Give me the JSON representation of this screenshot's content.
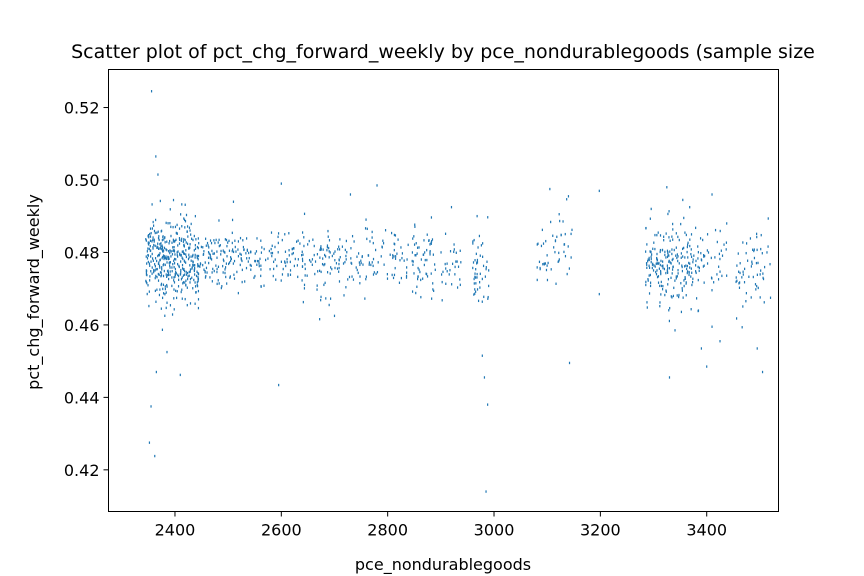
{
  "chart_data": {
    "type": "scatter",
    "title": "Scatter plot of pct_chg_forward_weekly by pce_nondurablegoods (sample size",
    "xlabel": "pce_nondurablegoods",
    "ylabel": "pct_chg_forward_weekly",
    "xlim": [
      2275,
      3535
    ],
    "ylim": [
      0.4085,
      0.5305
    ],
    "xticks": [
      "2400",
      "2600",
      "2800",
      "3000",
      "3200",
      "3400"
    ],
    "yticks": [
      "0.42",
      "0.44",
      "0.46",
      "0.48",
      "0.50",
      "0.52"
    ],
    "grid": false,
    "marker_color": "#1f77b4",
    "clusters": [
      {
        "x_range": [
          2345,
          2445
        ],
        "y_center": 0.478,
        "y_spread": 0.006,
        "count": 420
      },
      {
        "x_range": [
          2445,
          2540
        ],
        "y_center": 0.4785,
        "y_spread": 0.004,
        "count": 130
      },
      {
        "x_range": [
          2540,
          2640
        ],
        "y_center": 0.478,
        "y_spread": 0.004,
        "count": 90
      },
      {
        "x_range": [
          2640,
          2760
        ],
        "y_center": 0.478,
        "y_spread": 0.005,
        "count": 120
      },
      {
        "x_range": [
          2760,
          2840
        ],
        "y_center": 0.478,
        "y_spread": 0.004,
        "count": 60
      },
      {
        "x_range": [
          2845,
          2890
        ],
        "y_center": 0.477,
        "y_spread": 0.005,
        "count": 60
      },
      {
        "x_range": [
          2900,
          2940
        ],
        "y_center": 0.4775,
        "y_spread": 0.004,
        "count": 30
      },
      {
        "x_range": [
          2960,
          2990
        ],
        "y_center": 0.4765,
        "y_spread": 0.006,
        "count": 50
      },
      {
        "x_range": [
          3080,
          3150
        ],
        "y_center": 0.4805,
        "y_spread": 0.005,
        "count": 50
      },
      {
        "x_range": [
          3285,
          3385
        ],
        "y_center": 0.4765,
        "y_spread": 0.0055,
        "count": 230
      },
      {
        "x_range": [
          3385,
          3440
        ],
        "y_center": 0.4775,
        "y_spread": 0.005,
        "count": 40
      },
      {
        "x_range": [
          3455,
          3520
        ],
        "y_center": 0.4755,
        "y_spread": 0.006,
        "count": 60
      }
    ],
    "points": [
      [
        2356,
        0.5245
      ],
      [
        2364,
        0.5065
      ],
      [
        2368,
        0.5015
      ],
      [
        2355,
        0.4375
      ],
      [
        2352,
        0.4275
      ],
      [
        2362,
        0.4238
      ],
      [
        2365,
        0.447
      ],
      [
        2385,
        0.4525
      ],
      [
        2410,
        0.4462
      ],
      [
        2510,
        0.494
      ],
      [
        2595,
        0.4434
      ],
      [
        2600,
        0.499
      ],
      [
        2780,
        0.4985
      ],
      [
        2730,
        0.496
      ],
      [
        2985,
        0.414
      ],
      [
        2988,
        0.438
      ],
      [
        2982,
        0.4455
      ],
      [
        2978,
        0.4515
      ],
      [
        3105,
        0.4975
      ],
      [
        3140,
        0.4955
      ],
      [
        3198,
        0.497
      ],
      [
        3198,
        0.4685
      ],
      [
        3142,
        0.4495
      ],
      [
        3325,
        0.498
      ],
      [
        3330,
        0.4455
      ],
      [
        3390,
        0.4535
      ],
      [
        3400,
        0.4485
      ],
      [
        3410,
        0.496
      ],
      [
        3425,
        0.4555
      ],
      [
        3495,
        0.4535
      ],
      [
        3505,
        0.447
      ],
      [
        3410,
        0.4595
      ],
      [
        3355,
        0.4945
      ],
      [
        3368,
        0.4925
      ],
      [
        2920,
        0.4925
      ],
      [
        2640,
        0.4855
      ],
      [
        2700,
        0.4625
      ],
      [
        2690,
        0.4655
      ],
      [
        3475,
        0.4825
      ],
      [
        3520,
        0.4675
      ]
    ]
  }
}
